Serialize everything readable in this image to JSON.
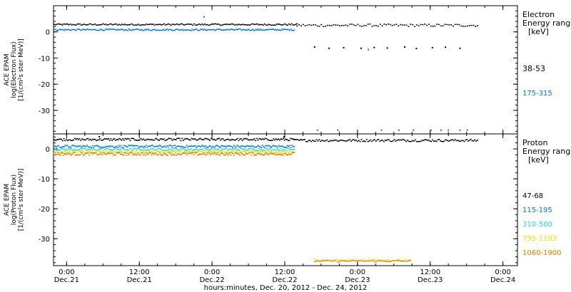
{
  "chart_data": [
    {
      "type": "scatter",
      "panel": "electron",
      "ylabel_lines": [
        "ACE EPAM",
        "log(Electron Flux)",
        "[1/(cm²s ster MeV)]"
      ],
      "yticks": [
        0,
        -10,
        -20,
        -30
      ],
      "ylim": [
        -39,
        10
      ],
      "legend_title": [
        "Electron",
        "Energy range",
        "[keV]"
      ],
      "series": [
        {
          "name": "38-53",
          "color": "#000000",
          "segments": [
            {
              "x0": -0.09,
              "x1": 1.58,
              "y": 3.0,
              "jitter": 0.3,
              "n": 180
            },
            {
              "x0": 1.58,
              "x1": 2.82,
              "y": 2.7,
              "jitter": 0.5,
              "n": 90
            }
          ],
          "points": [
            [
              1.7,
              -5.5
            ],
            [
              1.8,
              -6.0
            ],
            [
              1.9,
              -5.8
            ],
            [
              2.02,
              -6.0
            ],
            [
              2.11,
              -5.7
            ],
            [
              2.2,
              -5.9
            ],
            [
              2.32,
              -5.5
            ],
            [
              2.4,
              -6.1
            ],
            [
              2.51,
              -5.8
            ],
            [
              2.6,
              -5.6
            ],
            [
              2.7,
              -6.0
            ]
          ]
        },
        {
          "name": "175-315",
          "color": "#0a75c8",
          "segments": [
            {
              "x0": -0.09,
              "x1": 1.56,
              "y": 1.0,
              "jitter": 0.3,
              "n": 220
            }
          ],
          "points": [
            [
              0.94,
              6.0
            ],
            [
              2.07,
              -6.5
            ],
            [
              1.72,
              -37.3
            ],
            [
              1.86,
              -37.3
            ],
            [
              2.16,
              -37.3
            ],
            [
              2.28,
              -37.3
            ],
            [
              2.38,
              -37.3
            ],
            [
              2.5,
              -37.3
            ],
            [
              2.57,
              -37.3
            ],
            [
              2.62,
              -37.3
            ],
            [
              2.7,
              -37.3
            ],
            [
              2.75,
              -37.3
            ]
          ]
        }
      ]
    },
    {
      "type": "scatter",
      "panel": "proton",
      "ylabel_lines": [
        "ACE EPAM",
        "log(Proton Flux)",
        "[1/(cm²s ster MeV)]"
      ],
      "yticks": [
        0,
        -10,
        -20,
        -30
      ],
      "ylim": [
        -39,
        5
      ],
      "legend_title": [
        "Proton",
        "Energy range",
        "[keV]"
      ],
      "series": [
        {
          "name": "47-68",
          "color": "#000000",
          "segments": [
            {
              "x0": -0.09,
              "x1": 1.56,
              "y": 3.3,
              "jitter": 0.4,
              "n": 200
            },
            {
              "x0": 1.56,
              "x1": 2.82,
              "y": 3.0,
              "jitter": 0.4,
              "n": 140
            }
          ],
          "points": [
            [
              0.22,
              4.3
            ],
            [
              1.49,
              4.3
            ]
          ]
        },
        {
          "name": "115-195",
          "color": "#0a75c8",
          "segments": [
            {
              "x0": -0.09,
              "x1": 1.56,
              "y": 1.0,
              "jitter": 0.4,
              "n": 220
            }
          ],
          "points": []
        },
        {
          "name": "310-580",
          "color": "#26d9d0",
          "segments": [
            {
              "x0": -0.09,
              "x1": 1.56,
              "y": 0.0,
              "jitter": 0.4,
              "n": 220
            }
          ],
          "points": []
        },
        {
          "name": "795-1193",
          "color": "#e6e600",
          "segments": [
            {
              "x0": -0.09,
              "x1": 1.56,
              "y": -0.8,
              "jitter": 0.4,
              "n": 220
            },
            {
              "x0": 1.7,
              "x1": 2.36,
              "y": -37.0,
              "jitter": 0.3,
              "n": 60
            }
          ],
          "points": []
        },
        {
          "name": "1060-1900",
          "color": "#e07b00",
          "segments": [
            {
              "x0": -0.09,
              "x1": 1.56,
              "y": -1.5,
              "jitter": 0.5,
              "n": 240
            },
            {
              "x0": 1.7,
              "x1": 2.36,
              "y": -37.3,
              "jitter": 0.3,
              "n": 60
            }
          ],
          "points": []
        }
      ]
    }
  ],
  "xaxis": {
    "xlim": [
      -0.09,
      3.1
    ],
    "xlabel": "hours:minutes, Dec. 20, 2012 - Dec. 24, 2012",
    "ticks": [
      {
        "x": 0.0,
        "time": "0:00",
        "date": "Dec.21"
      },
      {
        "x": 0.5,
        "time": "12:00",
        "date": "Dec.21"
      },
      {
        "x": 1.0,
        "time": "0:00",
        "date": "Dec.22"
      },
      {
        "x": 1.5,
        "time": "12:00",
        "date": "Dec.22"
      },
      {
        "x": 2.0,
        "time": "0:00",
        "date": "Dec.23"
      },
      {
        "x": 2.5,
        "time": "12:00",
        "date": "Dec.23"
      },
      {
        "x": 3.0,
        "time": "0:00",
        "date": "Dec.24"
      }
    ],
    "minor_step": 0.125
  }
}
